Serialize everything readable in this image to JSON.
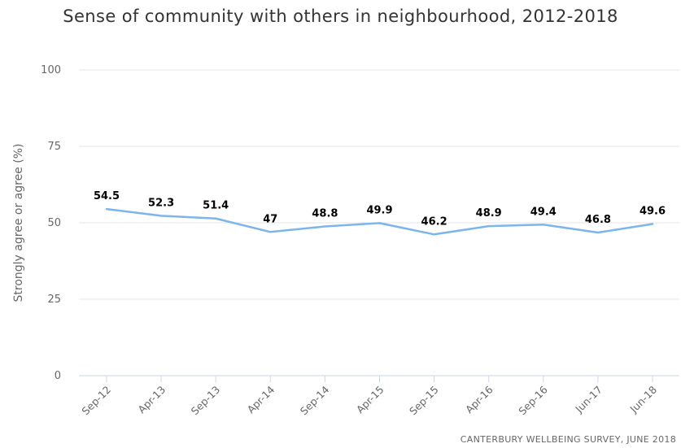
{
  "chart_data": {
    "type": "line",
    "title": "Sense of community with others in neighbourhood, 2012-2018",
    "xlabel": "",
    "ylabel": "Strongly agree or agree (%)",
    "categories": [
      "Sep-12",
      "Apr-13",
      "Sep-13",
      "Apr-14",
      "Sep-14",
      "Apr-15",
      "Sep-15",
      "Apr-16",
      "Sep-16",
      "Jun-17",
      "Jun-18"
    ],
    "series": [
      {
        "values": [
          54.5,
          52.3,
          51.4,
          47,
          48.8,
          49.9,
          46.2,
          48.9,
          49.4,
          46.8,
          49.6
        ],
        "color": "#7cb5ec"
      }
    ],
    "ylim": [
      0,
      100
    ],
    "yticks": [
      0,
      25,
      50,
      75,
      100
    ],
    "grid": true,
    "data_labels": true
  },
  "source": "CANTERBURY WELLBEING SURVEY, JUNE 2018"
}
